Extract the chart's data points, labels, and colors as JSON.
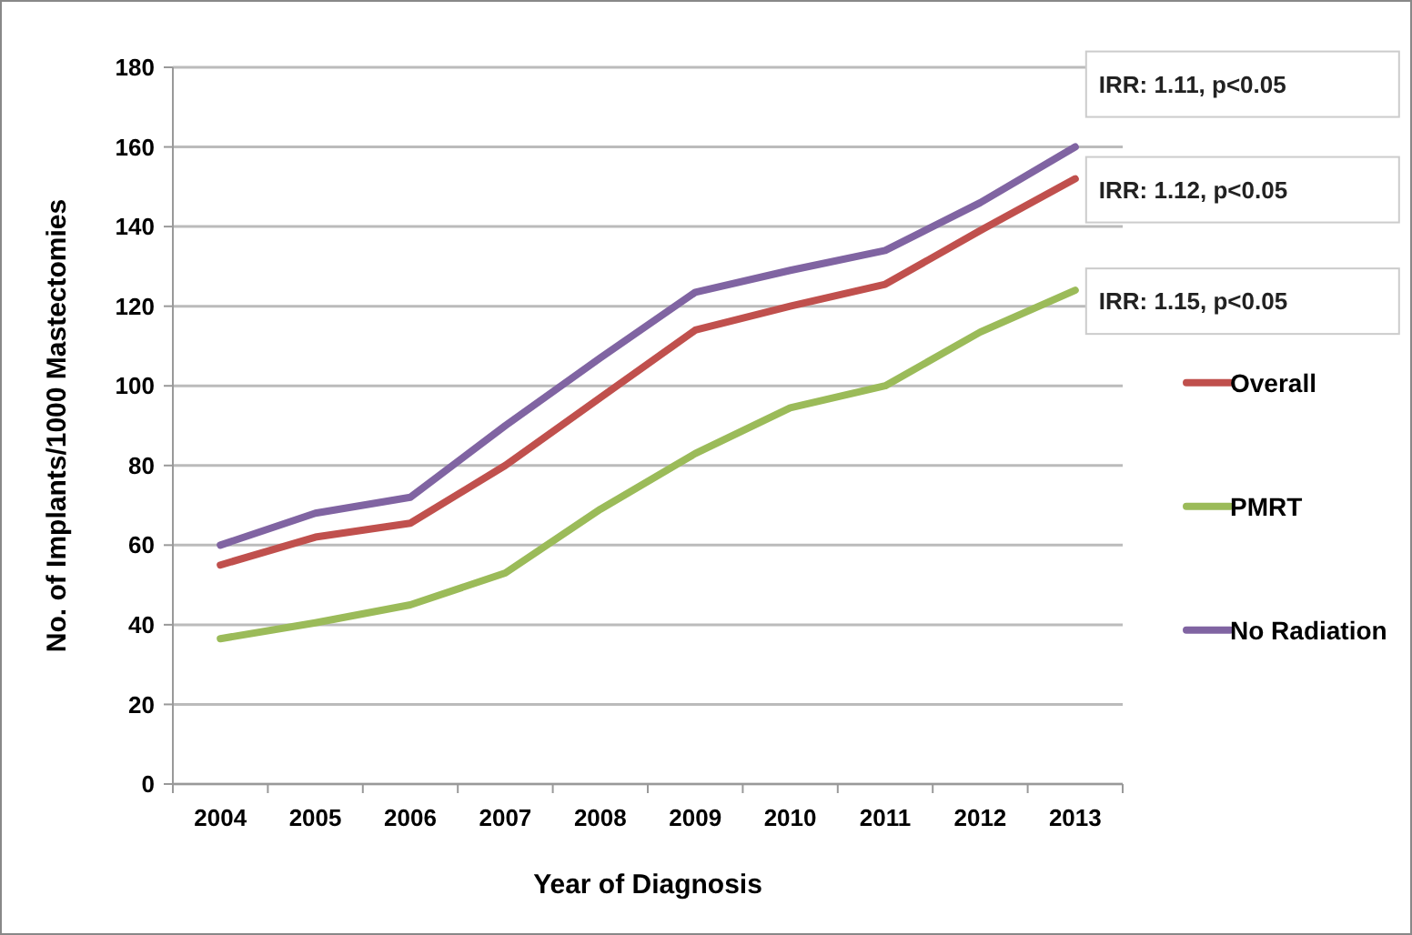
{
  "chart_data": {
    "type": "line",
    "xlabel": "Year of Diagnosis",
    "ylabel": "No. of Implants/1000 Mastectomies",
    "categories": [
      "2004",
      "2005",
      "2006",
      "2007",
      "2008",
      "2009",
      "2010",
      "2011",
      "2012",
      "2013"
    ],
    "series": [
      {
        "name": "Overall",
        "color": "#c0504d",
        "values": [
          55,
          62,
          65.5,
          80,
          97,
          114,
          120,
          125.5,
          139,
          152
        ]
      },
      {
        "name": "PMRT",
        "color": "#9bbb59",
        "values": [
          36.5,
          40.5,
          45,
          53,
          69,
          83,
          94.5,
          100,
          113.5,
          124
        ]
      },
      {
        "name": "No Radiation",
        "color": "#8064a2",
        "values": [
          60,
          68,
          72,
          90,
          107,
          123.5,
          129,
          134,
          146,
          160
        ]
      }
    ],
    "ylim": [
      0,
      180
    ],
    "yticks": [
      0,
      20,
      40,
      60,
      80,
      100,
      120,
      140,
      160,
      180
    ],
    "grid": "y",
    "legend": "right",
    "marker": "none",
    "line_style": "solid",
    "annotations": [
      {
        "text": "IRR: 1.11, p<0.05",
        "x": "2013",
        "y": 160
      },
      {
        "text": "IRR: 1.12, p<0.05",
        "x": "2013",
        "y": 152
      },
      {
        "text": "IRR: 1.15, p<0.05",
        "x": "2013",
        "y": 124
      }
    ]
  }
}
